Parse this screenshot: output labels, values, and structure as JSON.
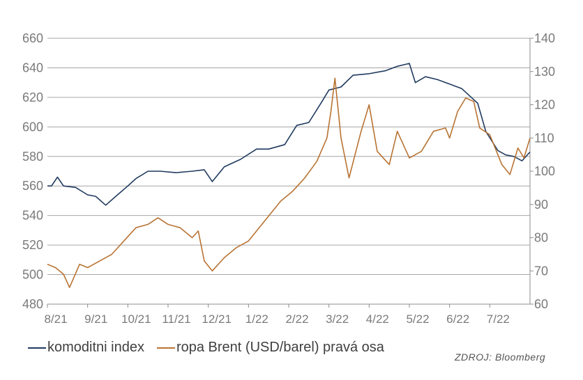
{
  "chart_data": {
    "type": "line",
    "x": [
      "8/21",
      "9/21",
      "10/21",
      "11/21",
      "12/21",
      "1/22",
      "2/22",
      "3/22",
      "4/22",
      "5/22",
      "6/22",
      "7/22"
    ],
    "yaxis_left": {
      "ticks": [
        "660",
        "640",
        "620",
        "600",
        "580",
        "560",
        "540",
        "520",
        "500",
        "480"
      ],
      "range": [
        480,
        660
      ]
    },
    "yaxis_right": {
      "ticks": [
        "140",
        "130",
        "120",
        "110",
        "100",
        "90",
        "80",
        "70",
        "60"
      ],
      "range": [
        60,
        140
      ]
    },
    "grid": true,
    "legend_position": "bottom-left",
    "series": [
      {
        "name": "komoditni index",
        "axis": "left",
        "color": "#1f3a5f",
        "values": [
          [
            0,
            560
          ],
          [
            0.1,
            560
          ],
          [
            0.25,
            566
          ],
          [
            0.4,
            560
          ],
          [
            0.7,
            559
          ],
          [
            1.0,
            554
          ],
          [
            1.2,
            553
          ],
          [
            1.45,
            547
          ],
          [
            1.7,
            553
          ],
          [
            2.0,
            560
          ],
          [
            2.2,
            565
          ],
          [
            2.5,
            570
          ],
          [
            2.8,
            570
          ],
          [
            3.2,
            569
          ],
          [
            3.6,
            570
          ],
          [
            3.9,
            571
          ],
          [
            4.1,
            563
          ],
          [
            4.4,
            573
          ],
          [
            4.8,
            578
          ],
          [
            5.2,
            585
          ],
          [
            5.5,
            585
          ],
          [
            5.9,
            588
          ],
          [
            6.2,
            601
          ],
          [
            6.5,
            603
          ],
          [
            6.8,
            616
          ],
          [
            7.0,
            625
          ],
          [
            7.3,
            627
          ],
          [
            7.6,
            635
          ],
          [
            8.0,
            636
          ],
          [
            8.4,
            638
          ],
          [
            8.7,
            641
          ],
          [
            9.0,
            643
          ],
          [
            9.15,
            630
          ],
          [
            9.4,
            634
          ],
          [
            9.7,
            632
          ],
          [
            10.0,
            629
          ],
          [
            10.3,
            626
          ],
          [
            10.5,
            621
          ],
          [
            10.7,
            616
          ],
          [
            10.9,
            597
          ],
          [
            11.2,
            584
          ],
          [
            11.4,
            581
          ],
          [
            11.6,
            580
          ],
          [
            11.8,
            577
          ],
          [
            12.0,
            583
          ]
        ]
      },
      {
        "name": "ropa Brent (USD/barel) pravá osa",
        "axis": "right",
        "color": "#b87333",
        "values": [
          [
            0,
            72
          ],
          [
            0.2,
            71
          ],
          [
            0.4,
            69
          ],
          [
            0.55,
            65
          ],
          [
            0.8,
            72
          ],
          [
            1.0,
            71
          ],
          [
            1.3,
            73
          ],
          [
            1.6,
            75
          ],
          [
            1.9,
            79
          ],
          [
            2.2,
            83
          ],
          [
            2.5,
            84
          ],
          [
            2.75,
            86
          ],
          [
            3.0,
            84
          ],
          [
            3.3,
            83
          ],
          [
            3.6,
            80
          ],
          [
            3.75,
            82
          ],
          [
            3.9,
            73
          ],
          [
            4.1,
            70
          ],
          [
            4.4,
            74
          ],
          [
            4.7,
            77
          ],
          [
            5.0,
            79
          ],
          [
            5.4,
            85
          ],
          [
            5.8,
            91
          ],
          [
            6.1,
            94
          ],
          [
            6.4,
            98
          ],
          [
            6.7,
            103
          ],
          [
            6.95,
            110
          ],
          [
            7.05,
            118
          ],
          [
            7.15,
            128
          ],
          [
            7.3,
            110
          ],
          [
            7.5,
            98
          ],
          [
            7.8,
            112
          ],
          [
            8.0,
            120
          ],
          [
            8.2,
            106
          ],
          [
            8.5,
            102
          ],
          [
            8.7,
            112
          ],
          [
            9.0,
            104
          ],
          [
            9.3,
            106
          ],
          [
            9.6,
            112
          ],
          [
            9.9,
            113
          ],
          [
            10.0,
            110
          ],
          [
            10.2,
            118
          ],
          [
            10.4,
            122
          ],
          [
            10.6,
            121
          ],
          [
            10.75,
            113
          ],
          [
            11.0,
            111
          ],
          [
            11.3,
            102
          ],
          [
            11.5,
            99
          ],
          [
            11.7,
            107
          ],
          [
            11.85,
            104
          ],
          [
            12.0,
            110
          ]
        ]
      }
    ]
  },
  "source": "ZDROJ: Bloomberg"
}
